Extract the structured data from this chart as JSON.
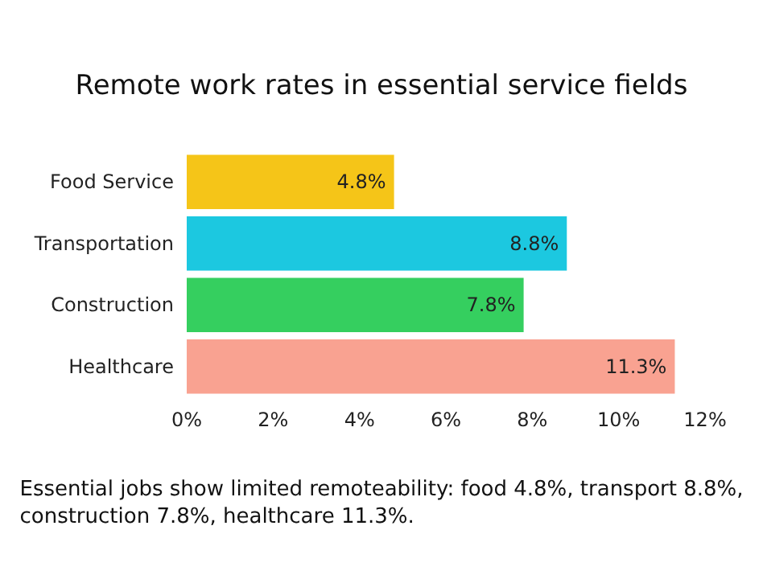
{
  "chart_data": {
    "type": "bar",
    "orientation": "horizontal",
    "title": "Remote work rates in essential service fields",
    "categories": [
      "Food Service",
      "Transportation",
      "Construction",
      "Healthcare"
    ],
    "values": [
      4.8,
      8.8,
      7.8,
      11.3
    ],
    "colors": [
      "#f5c518",
      "#1cc8e0",
      "#35cf5f",
      "#f9a291"
    ],
    "value_labels": [
      "4.8%",
      "8.8%",
      "7.8%",
      "11.3%"
    ],
    "xlim": [
      0,
      12
    ],
    "xticks": [
      {
        "value": 0,
        "label": "0%"
      },
      {
        "value": 2,
        "label": "2%"
      },
      {
        "value": 4,
        "label": "4%"
      },
      {
        "value": 6,
        "label": "6%"
      },
      {
        "value": 8,
        "label": "8%"
      },
      {
        "value": 10,
        "label": "10%"
      },
      {
        "value": 12,
        "label": "12%"
      }
    ],
    "grid": false,
    "annotations": [
      "Essential jobs show limited remoteability: food 4.8%, transport 8.8%,\nconstruction 7.8%, healthcare 11.3%."
    ]
  }
}
